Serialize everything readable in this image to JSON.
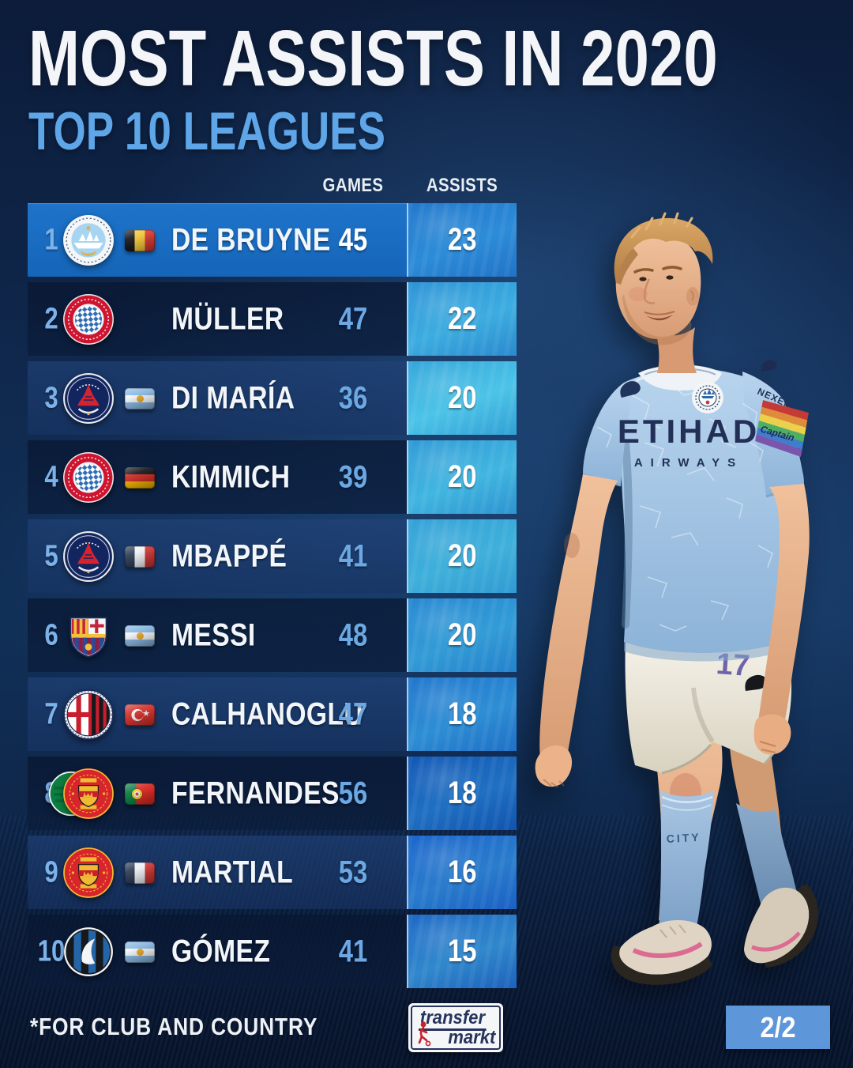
{
  "header": {
    "title": "MOST ASSISTS IN 2020",
    "subtitle": "TOP 10 LEAGUES"
  },
  "columns": {
    "games": "GAMES",
    "assists": "ASSISTS"
  },
  "rows": [
    {
      "rank": "1",
      "club": "man-city",
      "flag": "belgium",
      "name": "DE BRUYNE",
      "games": "45",
      "assists": "23",
      "highlight": true
    },
    {
      "rank": "2",
      "club": "bayern",
      "flag": null,
      "name": "MÜLLER",
      "games": "47",
      "assists": "22"
    },
    {
      "rank": "3",
      "club": "psg",
      "flag": "argentina",
      "name": "DI MARÍA",
      "games": "36",
      "assists": "20"
    },
    {
      "rank": "4",
      "club": "bayern",
      "flag": "germany",
      "name": "KIMMICH",
      "games": "39",
      "assists": "20"
    },
    {
      "rank": "5",
      "club": "psg",
      "flag": "france",
      "name": "MBAPPÉ",
      "games": "41",
      "assists": "20"
    },
    {
      "rank": "6",
      "club": "barcelona",
      "flag": "argentina",
      "name": "MESSI",
      "games": "48",
      "assists": "20"
    },
    {
      "rank": "7",
      "club": "milan",
      "flag": "turkey",
      "name": "CALHANOGLU",
      "games": "47",
      "assists": "18"
    },
    {
      "rank": "8",
      "club": "man-united",
      "club2": "sporting",
      "flag": "portugal",
      "name": "FERNANDES",
      "games": "56",
      "assists": "18"
    },
    {
      "rank": "9",
      "club": "man-united",
      "flag": "france",
      "name": "MARTIAL",
      "games": "53",
      "assists": "16"
    },
    {
      "rank": "10",
      "club": "atalanta",
      "flag": "argentina",
      "name": "GÓMEZ",
      "games": "41",
      "assists": "15"
    }
  ],
  "player_photo": {
    "sponsor_line1": "ETIHAD",
    "sponsor_line2": "AIRWAYS",
    "sleeve_sponsor": "NEXEN",
    "armband_text": "Captain",
    "shirt_number": "17",
    "sock_text": "CITY"
  },
  "footer": {
    "note": "*FOR CLUB AND COUNTRY",
    "brand_line1": "transfer",
    "brand_line2": "markt",
    "page_indicator": "2/2"
  },
  "colors": {
    "background": "#0e2144",
    "highlight_row": "#1e74ca",
    "assists_cell": "#2b8fd6",
    "subtitle": "#5ea6e8",
    "page_badge": "#5e96da",
    "brand_navy": "#26335c",
    "brand_red": "#c8222a"
  }
}
